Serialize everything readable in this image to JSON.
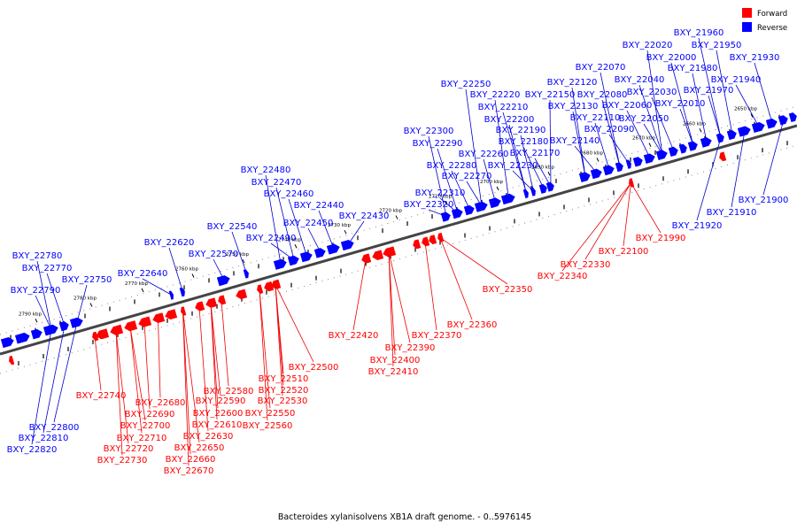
{
  "caption": "Bacteroides xylanisolvens XB1A draft genome. - 0..5976145",
  "legend": [
    {
      "label": "Forward",
      "color": "#ff0000"
    },
    {
      "label": "Reverse",
      "color": "#0000ff"
    }
  ],
  "colors": {
    "forward": "#ff0000",
    "reverse": "#0000ff",
    "axis": "#444444",
    "pointer_f": "#ee0000",
    "pointer_r": "#0000cc"
  },
  "ticks": [
    "2790 kbp",
    "2780 kbp",
    "2770 kbp",
    "2760 kbp",
    "2750 kbp",
    "2740 kbp",
    "2730 kbp",
    "2720 kbp",
    "2710 kbp",
    "2700 kbp",
    "2690 kbp",
    "2680 kbp",
    "2670 kbp",
    "2660 kbp",
    "2650 kbp"
  ],
  "reverse_labels": [
    "BXY_21960",
    "BXY_22020",
    "BXY_21950",
    "BXY_22000",
    "BXY_21930",
    "BXY_22070",
    "BXY_21980",
    "BXY_22040",
    "BXY_21940",
    "BXY_22120",
    "BXY_22080",
    "BXY_22250",
    "BXY_21970",
    "BXY_22030",
    "BXY_22220",
    "BXY_22150",
    "BXY_22010",
    "BXY_22060",
    "BXY_22210",
    "BXY_22130",
    "BXY_22110",
    "BXY_22050",
    "BXY_22200",
    "BXY_22090",
    "BXY_22300",
    "BXY_22190",
    "BXY_22180",
    "BXY_22140",
    "BXY_22290",
    "BXY_22170",
    "BXY_22260",
    "BXY_22280",
    "BXY_22230",
    "BXY_22270",
    "BXY_22480",
    "BXY_22470",
    "BXY_22310",
    "BXY_22460",
    "BXY_22320",
    "BXY_22440",
    "BXY_22430",
    "BXY_22450",
    "BXY_22540",
    "BXY_22490",
    "BXY_22620",
    "BXY_22780",
    "BXY_22570",
    "BXY_22770",
    "BXY_22640",
    "BXY_22750",
    "BXY_22790",
    "BXY_22800",
    "BXY_22810",
    "BXY_22820",
    "BXY_21900",
    "BXY_21910",
    "BXY_21920"
  ],
  "forward_labels": [
    "BXY_21990",
    "BXY_22100",
    "BXY_22330",
    "BXY_22340",
    "BXY_22350",
    "BXY_22360",
    "BXY_22370",
    "BXY_22420",
    "BXY_22390",
    "BXY_22400",
    "BXY_22410",
    "BXY_22500",
    "BXY_22510",
    "BXY_22520",
    "BXY_22530",
    "BXY_22550",
    "BXY_22560",
    "BXY_22580",
    "BXY_22590",
    "BXY_22600",
    "BXY_22610",
    "BXY_22630",
    "BXY_22650",
    "BXY_22660",
    "BXY_22670",
    "BXY_22680",
    "BXY_22690",
    "BXY_22700",
    "BXY_22710",
    "BXY_22720",
    "BXY_22730",
    "BXY_22740"
  ]
}
